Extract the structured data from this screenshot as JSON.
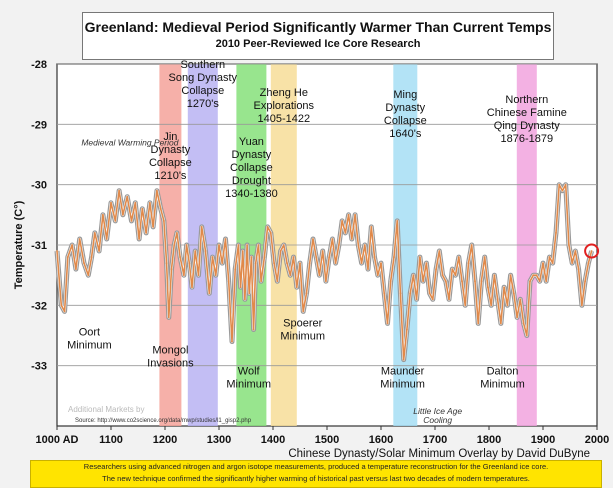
{
  "header": {
    "title": "Greenland: Medieval Period Significantly Warmer Than Current Temps",
    "subtitle": "2010 Peer-Reviewed Ice Core Research"
  },
  "footer": {
    "line1": "Researchers using advanced nitrogen and argon isotope measurements, produced a temperature reconstruction for the Greenland ice core.",
    "line2": "The new technique confirmed the significantly higher warming of historical past versus last two decades of modern temperatures."
  },
  "chart_data": {
    "type": "line",
    "ylabel": "Temperature (C°)",
    "xlabel": "Chinese Dynasty/Solar Minimum Overlay by David DuByne",
    "x_tick_labels": [
      "1000 AD",
      "1100",
      "1200",
      "1300",
      "1400",
      "1500",
      "1600",
      "1700",
      "1800",
      "1900",
      "2000"
    ],
    "x_ticks": [
      1000,
      1100,
      1200,
      1300,
      1400,
      1500,
      1600,
      1700,
      1800,
      1900,
      2000
    ],
    "y_ticks": [
      -28,
      -29,
      -30,
      -31,
      -32,
      -33
    ],
    "y_tick_labels": [
      "-28",
      "-29",
      "-30",
      "-31",
      "-32",
      "-33"
    ],
    "xlim": [
      1000,
      2000
    ],
    "ylim": [
      -34,
      -28
    ],
    "source": "Source: http://www.co2science.org/data/mwp/studies/l1_gisp2.php",
    "bands": [
      {
        "x": 1210,
        "width": 22,
        "color": "#f4a29a",
        "label": [
          "Jin",
          "Dynasty",
          "Collapse",
          "1210's"
        ]
      },
      {
        "x": 1270,
        "width": 30,
        "color": "#b9b3f2",
        "label": [
          "Southern",
          "Song Dynasty",
          "Collapse",
          "1270's"
        ]
      },
      {
        "x": 1360,
        "width": 30,
        "color": "#86e07a",
        "label": [
          "Yuan",
          "Dynasty",
          "Collapse",
          "Drought",
          "1340-1380"
        ]
      },
      {
        "x": 1420,
        "width": 26,
        "color": "#f7dd98",
        "label": [
          "Zheng He",
          "Explorations",
          "1405-1422"
        ]
      },
      {
        "x": 1645,
        "width": 24,
        "color": "#a6def5",
        "label": [
          "Ming",
          "Dynasty",
          "Collapse",
          "1640's"
        ]
      },
      {
        "x": 1870,
        "width": 20,
        "color": "#f1a3de",
        "label": [
          "Northern",
          "Chinese Famine",
          "Qing Dynasty",
          "1876-1879"
        ]
      }
    ],
    "minima": [
      {
        "x": 1060,
        "y": -32.5,
        "label": [
          "Oort",
          "Minimum"
        ]
      },
      {
        "x": 1210,
        "y": -32.8,
        "label": [
          "Mongol",
          "Invasions"
        ]
      },
      {
        "x": 1355,
        "y": -33.15,
        "label": [
          "Wolf",
          "Minimum"
        ]
      },
      {
        "x": 1455,
        "y": -32.35,
        "label": [
          "Spoerer",
          "Minimum"
        ]
      },
      {
        "x": 1640,
        "y": -33.15,
        "label": [
          "Maunder",
          "Minimum"
        ]
      },
      {
        "x": 1825,
        "y": -33.15,
        "label": [
          "Dalton",
          "Minimum"
        ]
      }
    ],
    "period_notes": [
      {
        "x": 1135,
        "y": -29.35,
        "text": "Medieval Warming Period"
      },
      {
        "x": 1705,
        "y": -33.8,
        "text": "Little Ice Age"
      },
      {
        "x": 1705,
        "y": -33.95,
        "text": "Cooling"
      }
    ],
    "series": [
      {
        "values": [
          [
            1000,
            -31.1
          ],
          [
            1008,
            -32.0
          ],
          [
            1014,
            -32.1
          ],
          [
            1020,
            -31.2
          ],
          [
            1028,
            -31.0
          ],
          [
            1035,
            -31.4
          ],
          [
            1042,
            -30.9
          ],
          [
            1050,
            -31.3
          ],
          [
            1058,
            -31.5
          ],
          [
            1064,
            -31.2
          ],
          [
            1070,
            -30.8
          ],
          [
            1078,
            -31.1
          ],
          [
            1085,
            -30.5
          ],
          [
            1092,
            -30.9
          ],
          [
            1100,
            -30.3
          ],
          [
            1108,
            -30.6
          ],
          [
            1115,
            -30.1
          ],
          [
            1122,
            -30.5
          ],
          [
            1130,
            -30.2
          ],
          [
            1138,
            -30.6
          ],
          [
            1145,
            -30.3
          ],
          [
            1152,
            -30.9
          ],
          [
            1158,
            -30.4
          ],
          [
            1165,
            -30.8
          ],
          [
            1172,
            -30.3
          ],
          [
            1178,
            -30.7
          ],
          [
            1185,
            -30.1
          ],
          [
            1192,
            -30.4
          ],
          [
            1198,
            -30.6
          ],
          [
            1203,
            -31.3
          ],
          [
            1207,
            -32.2
          ],
          [
            1212,
            -31.4
          ],
          [
            1217,
            -31.0
          ],
          [
            1222,
            -30.8
          ],
          [
            1228,
            -31.2
          ],
          [
            1235,
            -31.5
          ],
          [
            1240,
            -31.0
          ],
          [
            1245,
            -31.3
          ],
          [
            1250,
            -31.7
          ],
          [
            1256,
            -31.1
          ],
          [
            1262,
            -31.5
          ],
          [
            1268,
            -30.7
          ],
          [
            1275,
            -31.1
          ],
          [
            1282,
            -31.8
          ],
          [
            1288,
            -31.2
          ],
          [
            1294,
            -31.5
          ],
          [
            1300,
            -31.0
          ],
          [
            1306,
            -31.3
          ],
          [
            1312,
            -30.9
          ],
          [
            1318,
            -31.6
          ],
          [
            1324,
            -32.6
          ],
          [
            1330,
            -31.4
          ],
          [
            1336,
            -31.0
          ],
          [
            1340,
            -31.7
          ],
          [
            1344,
            -31.1
          ],
          [
            1348,
            -31.9
          ],
          [
            1352,
            -31.0
          ],
          [
            1356,
            -31.8
          ],
          [
            1360,
            -31.2
          ],
          [
            1364,
            -32.4
          ],
          [
            1368,
            -31.3
          ],
          [
            1373,
            -31.0
          ],
          [
            1378,
            -31.6
          ],
          [
            1384,
            -31.2
          ],
          [
            1390,
            -30.7
          ],
          [
            1396,
            -30.8
          ],
          [
            1402,
            -31.3
          ],
          [
            1408,
            -31.6
          ],
          [
            1414,
            -31.1
          ],
          [
            1420,
            -31.0
          ],
          [
            1426,
            -31.3
          ],
          [
            1432,
            -31.5
          ],
          [
            1438,
            -31.2
          ],
          [
            1444,
            -31.7
          ],
          [
            1450,
            -31.3
          ],
          [
            1456,
            -32.1
          ],
          [
            1462,
            -31.8
          ],
          [
            1468,
            -31.3
          ],
          [
            1474,
            -30.9
          ],
          [
            1480,
            -31.2
          ],
          [
            1486,
            -31.5
          ],
          [
            1492,
            -31.1
          ],
          [
            1498,
            -31.6
          ],
          [
            1504,
            -31.2
          ],
          [
            1510,
            -30.9
          ],
          [
            1516,
            -31.3
          ],
          [
            1522,
            -31.0
          ],
          [
            1528,
            -30.6
          ],
          [
            1534,
            -30.8
          ],
          [
            1540,
            -30.5
          ],
          [
            1546,
            -30.9
          ],
          [
            1552,
            -30.5
          ],
          [
            1558,
            -31.0
          ],
          [
            1564,
            -31.3
          ],
          [
            1570,
            -31.0
          ],
          [
            1576,
            -31.4
          ],
          [
            1582,
            -30.7
          ],
          [
            1588,
            -31.2
          ],
          [
            1594,
            -31.5
          ],
          [
            1600,
            -31.3
          ],
          [
            1606,
            -31.8
          ],
          [
            1612,
            -32.3
          ],
          [
            1618,
            -31.6
          ],
          [
            1624,
            -31.2
          ],
          [
            1630,
            -30.6
          ],
          [
            1636,
            -31.8
          ],
          [
            1642,
            -32.9
          ],
          [
            1648,
            -32.4
          ],
          [
            1654,
            -31.8
          ],
          [
            1660,
            -31.5
          ],
          [
            1666,
            -31.9
          ],
          [
            1672,
            -31.2
          ],
          [
            1678,
            -31.6
          ],
          [
            1684,
            -31.3
          ],
          [
            1690,
            -31.8
          ],
          [
            1696,
            -31.9
          ],
          [
            1702,
            -31.4
          ],
          [
            1708,
            -31.1
          ],
          [
            1714,
            -31.5
          ],
          [
            1720,
            -31.6
          ],
          [
            1726,
            -31.9
          ],
          [
            1732,
            -31.4
          ],
          [
            1738,
            -31.5
          ],
          [
            1744,
            -31.2
          ],
          [
            1750,
            -31.6
          ],
          [
            1756,
            -32.0
          ],
          [
            1762,
            -31.3
          ],
          [
            1768,
            -31.0
          ],
          [
            1774,
            -31.6
          ],
          [
            1780,
            -32.3
          ],
          [
            1786,
            -31.6
          ],
          [
            1792,
            -31.2
          ],
          [
            1798,
            -31.7
          ],
          [
            1804,
            -32.0
          ],
          [
            1810,
            -31.5
          ],
          [
            1816,
            -31.9
          ],
          [
            1822,
            -32.3
          ],
          [
            1828,
            -31.7
          ],
          [
            1834,
            -32.0
          ],
          [
            1840,
            -31.5
          ],
          [
            1846,
            -31.8
          ],
          [
            1852,
            -32.2
          ],
          [
            1858,
            -31.9
          ],
          [
            1864,
            -32.3
          ],
          [
            1870,
            -32.5
          ],
          [
            1876,
            -31.6
          ],
          [
            1882,
            -31.5
          ],
          [
            1888,
            -31.5
          ],
          [
            1894,
            -31.6
          ],
          [
            1900,
            -31.3
          ],
          [
            1906,
            -31.6
          ],
          [
            1912,
            -31.2
          ],
          [
            1918,
            -31.3
          ],
          [
            1924,
            -30.8
          ],
          [
            1930,
            -30.0
          ],
          [
            1936,
            -30.1
          ],
          [
            1942,
            -30.0
          ],
          [
            1948,
            -31.0
          ],
          [
            1954,
            -31.3
          ],
          [
            1960,
            -31.1
          ],
          [
            1966,
            -31.4
          ],
          [
            1972,
            -32.0
          ],
          [
            1978,
            -31.6
          ],
          [
            1984,
            -31.3
          ],
          [
            1990,
            -31.1
          ]
        ]
      }
    ],
    "current_marker": {
      "x": 1990,
      "y": -31.1,
      "color": "#e02020"
    },
    "line_color": "#e0894a",
    "outline_color": "#9a9a9a"
  },
  "watermark": "Additional Markets by"
}
